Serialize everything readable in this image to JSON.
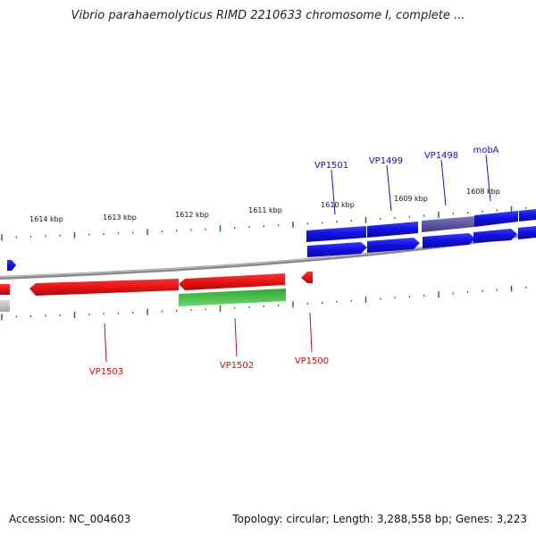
{
  "header": {
    "title": "Vibrio parahaemolyticus RIMD 2210633 chromosome I, complete ..."
  },
  "footer": {
    "accession": "Accession: NC_004603",
    "stats": "Topology: circular; Length: 3,288,558 bp; Genes: 3,223"
  },
  "ruler": {
    "ticks": [
      "1614 kbp",
      "1613 kbp",
      "1612 kbp",
      "1611 kbp",
      "1610 kbp",
      "1609 kbp",
      "1608 kbp"
    ]
  },
  "genes": {
    "top": [
      "VP1501",
      "VP1499",
      "VP1498",
      "mobA"
    ],
    "bottom": [
      "VP1503",
      "VP1502",
      "VP1500"
    ]
  },
  "colors": {
    "forward_gene": "#1010e0",
    "highlight_gene": "#54509a",
    "reverse_gene": "#e01010",
    "rna_gene": "#28b828",
    "backbone": "#8a8a8a",
    "tick": "#1a7a1a",
    "top_label": "#1010d0",
    "bottom_label": "#c81010"
  }
}
